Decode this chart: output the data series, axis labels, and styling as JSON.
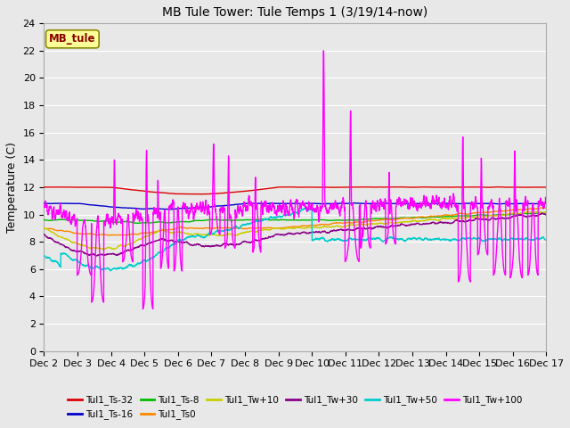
{
  "title": "MB Tule Tower: Tule Temps 1 (3/19/14-now)",
  "ylabel": "Temperature (C)",
  "ylim": [
    0,
    24
  ],
  "yticks": [
    0,
    2,
    4,
    6,
    8,
    10,
    12,
    14,
    16,
    18,
    20,
    22,
    24
  ],
  "xlim_days": [
    2,
    17
  ],
  "xtick_labels": [
    "Dec 2",
    "Dec 3",
    "Dec 4",
    "Dec 5",
    "Dec 6",
    "Dec 7",
    "Dec 8",
    "Dec 9",
    "Dec 10",
    "Dec 11",
    "Dec 12",
    "Dec 13",
    "Dec 14",
    "Dec 15",
    "Dec 16",
    "Dec 17"
  ],
  "legend_label": "MB_tule",
  "series_labels": [
    "Tul1_Ts-32",
    "Tul1_Ts-16",
    "Tul1_Ts-8",
    "Tul1_Ts0",
    "Tul1_Tw+10",
    "Tul1_Tw+30",
    "Tul1_Tw+50",
    "Tul1_Tw+100"
  ],
  "series_colors": [
    "#dd0000",
    "#0000cc",
    "#00bb00",
    "#ff8800",
    "#cccc00",
    "#880088",
    "#00cccc",
    "#ff00ff"
  ],
  "background_color": "#e8e8e8",
  "plot_bg_color": "#e8e8e8",
  "grid_color": "#ffffff",
  "figsize": [
    6.4,
    4.8
  ],
  "dpi": 100
}
